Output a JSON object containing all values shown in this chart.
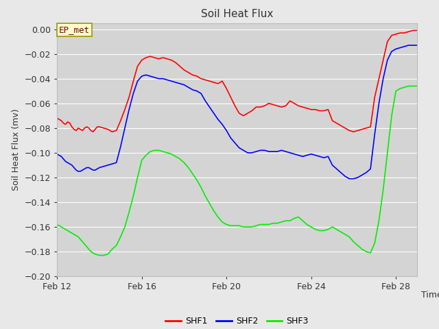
{
  "title": "Soil Heat Flux",
  "ylabel": "Soil Heat Flux (mv)",
  "xlabel": "Time",
  "annotation": "EP_met",
  "ylim": [
    -0.2,
    0.005
  ],
  "yticks": [
    0.0,
    -0.02,
    -0.04,
    -0.06,
    -0.08,
    -0.1,
    -0.12,
    -0.14,
    -0.16,
    -0.18,
    -0.2
  ],
  "xtick_labels": [
    "Feb 12",
    "Feb 16",
    "Feb 20",
    "Feb 24",
    "Feb 28"
  ],
  "xtick_positions": [
    0,
    4,
    8,
    12,
    16
  ],
  "xlim": [
    0,
    17
  ],
  "fig_bg": "#e8e8e8",
  "plot_bg": "#d4d4d4",
  "grid_color": "#ffffff",
  "colors": {
    "SHF1": "#ff0000",
    "SHF2": "#0000ff",
    "SHF3": "#00ee00"
  },
  "SHF1_x": [
    0.0,
    0.1,
    0.2,
    0.3,
    0.4,
    0.5,
    0.6,
    0.7,
    0.8,
    0.9,
    1.0,
    1.1,
    1.2,
    1.3,
    1.4,
    1.5,
    1.6,
    1.7,
    1.8,
    1.9,
    2.0,
    2.2,
    2.4,
    2.6,
    2.8,
    3.0,
    3.2,
    3.4,
    3.6,
    3.8,
    4.0,
    4.2,
    4.4,
    4.6,
    4.8,
    5.0,
    5.2,
    5.4,
    5.6,
    5.8,
    6.0,
    6.2,
    6.4,
    6.6,
    6.8,
    7.0,
    7.2,
    7.4,
    7.6,
    7.8,
    8.0,
    8.2,
    8.4,
    8.6,
    8.8,
    9.0,
    9.2,
    9.4,
    9.6,
    9.8,
    10.0,
    10.2,
    10.4,
    10.6,
    10.8,
    11.0,
    11.2,
    11.4,
    11.6,
    11.8,
    12.0,
    12.2,
    12.4,
    12.6,
    12.8,
    13.0,
    13.2,
    13.4,
    13.6,
    13.8,
    14.0,
    14.2,
    14.4,
    14.6,
    14.8,
    15.0,
    15.2,
    15.4,
    15.6,
    15.8,
    16.0,
    16.2,
    16.4,
    16.6,
    16.8,
    17.0
  ],
  "SHF1_y": [
    -0.072,
    -0.073,
    -0.074,
    -0.076,
    -0.077,
    -0.075,
    -0.076,
    -0.079,
    -0.081,
    -0.082,
    -0.08,
    -0.081,
    -0.082,
    -0.08,
    -0.079,
    -0.08,
    -0.082,
    -0.083,
    -0.081,
    -0.079,
    -0.079,
    -0.08,
    -0.081,
    -0.083,
    -0.082,
    -0.074,
    -0.065,
    -0.055,
    -0.042,
    -0.03,
    -0.025,
    -0.023,
    -0.022,
    -0.023,
    -0.024,
    -0.023,
    -0.024,
    -0.025,
    -0.027,
    -0.03,
    -0.033,
    -0.035,
    -0.037,
    -0.038,
    -0.04,
    -0.041,
    -0.042,
    -0.043,
    -0.044,
    -0.042,
    -0.048,
    -0.055,
    -0.062,
    -0.068,
    -0.07,
    -0.068,
    -0.066,
    -0.063,
    -0.063,
    -0.062,
    -0.06,
    -0.061,
    -0.062,
    -0.063,
    -0.062,
    -0.058,
    -0.06,
    -0.062,
    -0.063,
    -0.064,
    -0.065,
    -0.065,
    -0.066,
    -0.066,
    -0.065,
    -0.074,
    -0.076,
    -0.078,
    -0.08,
    -0.082,
    -0.083,
    -0.082,
    -0.081,
    -0.08,
    -0.079,
    -0.055,
    -0.04,
    -0.025,
    -0.01,
    -0.005,
    -0.004,
    -0.003,
    -0.003,
    -0.002,
    -0.001,
    -0.001
  ],
  "SHF2_x": [
    0.0,
    0.1,
    0.2,
    0.3,
    0.4,
    0.5,
    0.6,
    0.7,
    0.8,
    0.9,
    1.0,
    1.1,
    1.2,
    1.3,
    1.4,
    1.5,
    1.6,
    1.7,
    1.8,
    1.9,
    2.0,
    2.2,
    2.4,
    2.6,
    2.8,
    3.0,
    3.2,
    3.4,
    3.6,
    3.8,
    4.0,
    4.2,
    4.4,
    4.6,
    4.8,
    5.0,
    5.2,
    5.4,
    5.6,
    5.8,
    6.0,
    6.2,
    6.4,
    6.6,
    6.8,
    7.0,
    7.2,
    7.4,
    7.6,
    7.8,
    8.0,
    8.2,
    8.4,
    8.6,
    8.8,
    9.0,
    9.2,
    9.4,
    9.6,
    9.8,
    10.0,
    10.2,
    10.4,
    10.6,
    10.8,
    11.0,
    11.2,
    11.4,
    11.6,
    11.8,
    12.0,
    12.2,
    12.4,
    12.6,
    12.8,
    13.0,
    13.2,
    13.4,
    13.6,
    13.8,
    14.0,
    14.2,
    14.4,
    14.6,
    14.8,
    15.0,
    15.2,
    15.4,
    15.6,
    15.8,
    16.0,
    16.2,
    16.4,
    16.6,
    16.8,
    17.0
  ],
  "SHF2_y": [
    -0.101,
    -0.102,
    -0.103,
    -0.105,
    -0.107,
    -0.108,
    -0.109,
    -0.11,
    -0.112,
    -0.114,
    -0.115,
    -0.115,
    -0.114,
    -0.113,
    -0.112,
    -0.112,
    -0.113,
    -0.114,
    -0.114,
    -0.113,
    -0.112,
    -0.111,
    -0.11,
    -0.109,
    -0.108,
    -0.095,
    -0.08,
    -0.065,
    -0.052,
    -0.042,
    -0.038,
    -0.037,
    -0.038,
    -0.039,
    -0.04,
    -0.04,
    -0.041,
    -0.042,
    -0.043,
    -0.044,
    -0.045,
    -0.047,
    -0.049,
    -0.05,
    -0.052,
    -0.058,
    -0.063,
    -0.068,
    -0.073,
    -0.077,
    -0.082,
    -0.088,
    -0.092,
    -0.096,
    -0.098,
    -0.1,
    -0.1,
    -0.099,
    -0.098,
    -0.098,
    -0.099,
    -0.099,
    -0.099,
    -0.098,
    -0.099,
    -0.1,
    -0.101,
    -0.102,
    -0.103,
    -0.102,
    -0.101,
    -0.102,
    -0.103,
    -0.104,
    -0.103,
    -0.11,
    -0.113,
    -0.116,
    -0.119,
    -0.121,
    -0.121,
    -0.12,
    -0.118,
    -0.116,
    -0.113,
    -0.085,
    -0.06,
    -0.04,
    -0.025,
    -0.018,
    -0.016,
    -0.015,
    -0.014,
    -0.013,
    -0.013,
    -0.013
  ],
  "SHF3_x": [
    0.0,
    0.1,
    0.2,
    0.3,
    0.4,
    0.5,
    0.6,
    0.7,
    0.8,
    0.9,
    1.0,
    1.2,
    1.4,
    1.6,
    1.8,
    2.0,
    2.2,
    2.4,
    2.6,
    2.8,
    3.0,
    3.2,
    3.4,
    3.6,
    3.8,
    4.0,
    4.2,
    4.4,
    4.6,
    4.8,
    5.0,
    5.2,
    5.4,
    5.6,
    5.8,
    6.0,
    6.2,
    6.4,
    6.6,
    6.8,
    7.0,
    7.2,
    7.4,
    7.6,
    7.8,
    8.0,
    8.2,
    8.4,
    8.6,
    8.8,
    9.0,
    9.2,
    9.4,
    9.6,
    9.8,
    10.0,
    10.2,
    10.4,
    10.6,
    10.8,
    11.0,
    11.2,
    11.4,
    11.6,
    11.8,
    12.0,
    12.2,
    12.4,
    12.6,
    12.8,
    13.0,
    13.2,
    13.4,
    13.6,
    13.8,
    14.0,
    14.2,
    14.4,
    14.6,
    14.8,
    15.0,
    15.2,
    15.4,
    15.6,
    15.8,
    16.0,
    16.2,
    16.4,
    16.6,
    16.8,
    17.0
  ],
  "SHF3_y": [
    -0.158,
    -0.159,
    -0.16,
    -0.161,
    -0.162,
    -0.163,
    -0.164,
    -0.165,
    -0.166,
    -0.167,
    -0.168,
    -0.172,
    -0.176,
    -0.18,
    -0.182,
    -0.183,
    -0.183,
    -0.182,
    -0.178,
    -0.175,
    -0.168,
    -0.16,
    -0.148,
    -0.135,
    -0.12,
    -0.106,
    -0.102,
    -0.099,
    -0.098,
    -0.098,
    -0.099,
    -0.1,
    -0.101,
    -0.103,
    -0.105,
    -0.108,
    -0.112,
    -0.117,
    -0.122,
    -0.128,
    -0.135,
    -0.141,
    -0.147,
    -0.152,
    -0.156,
    -0.158,
    -0.159,
    -0.159,
    -0.159,
    -0.16,
    -0.16,
    -0.16,
    -0.159,
    -0.158,
    -0.158,
    -0.158,
    -0.157,
    -0.157,
    -0.156,
    -0.155,
    -0.155,
    -0.153,
    -0.152,
    -0.155,
    -0.158,
    -0.16,
    -0.162,
    -0.163,
    -0.163,
    -0.162,
    -0.16,
    -0.162,
    -0.164,
    -0.166,
    -0.168,
    -0.172,
    -0.175,
    -0.178,
    -0.18,
    -0.181,
    -0.173,
    -0.155,
    -0.13,
    -0.1,
    -0.07,
    -0.05,
    -0.048,
    -0.047,
    -0.046,
    -0.046,
    -0.046
  ]
}
